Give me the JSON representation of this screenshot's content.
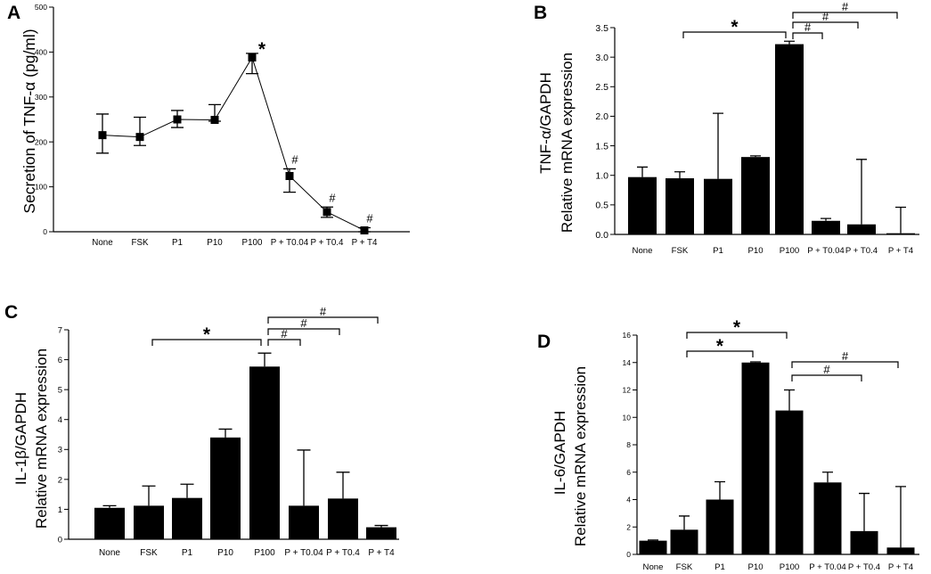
{
  "chart_data": [
    {
      "panel": "A",
      "type": "line",
      "grid": false,
      "ylabel": [
        "Secretion of TNF-α (pg/ml)"
      ],
      "ylim": [
        0,
        500
      ],
      "yticks": [
        "0",
        "100",
        "200",
        "300",
        "400",
        "500"
      ],
      "categories": [
        "None",
        "FSK",
        "P1",
        "P10",
        "P100",
        "P + T0.04",
        "P + T0.4",
        "P + T4"
      ],
      "values": [
        215,
        211,
        250,
        249,
        388,
        124,
        44,
        3
      ],
      "error_high": [
        262,
        255,
        270,
        283,
        397,
        140,
        55,
        9
      ],
      "error_low": [
        175,
        192,
        232,
        246,
        352,
        88,
        32,
        0
      ],
      "markers": [
        {
          "index": 4,
          "symbol": "*"
        },
        {
          "index": 5,
          "symbol": "#"
        },
        {
          "index": 6,
          "symbol": "#"
        },
        {
          "index": 7,
          "symbol": "#"
        }
      ]
    },
    {
      "panel": "B",
      "type": "bar",
      "grid": false,
      "ylabel": [
        "TNF-α/GAPDH",
        "Relative mRNA expression"
      ],
      "ylim": [
        0,
        3.5
      ],
      "yticks": [
        "0.0",
        "0.5",
        "1.0",
        "1.5",
        "2.0",
        "2.5",
        "3.0",
        "3.5"
      ],
      "categories": [
        "None",
        "FSK",
        "P1",
        "P10",
        "P100",
        "P + T0.04",
        "P + T0.4",
        "P + T4"
      ],
      "values": [
        0.97,
        0.95,
        0.94,
        1.31,
        3.22,
        0.23,
        0.17,
        0.02
      ],
      "error_high": [
        1.14,
        1.06,
        2.05,
        1.33,
        3.27,
        0.27,
        1.27,
        0.46
      ],
      "brackets": [
        {
          "from_index": 1,
          "to_index": 4,
          "symbol": "*"
        },
        {
          "from_index": 4,
          "to_index": 5,
          "symbol": "#"
        },
        {
          "from_index": 4,
          "to_index": 6,
          "symbol": "#"
        },
        {
          "from_index": 4,
          "to_index": 7,
          "symbol": "#"
        }
      ]
    },
    {
      "panel": "C",
      "type": "bar",
      "grid": false,
      "ylabel": [
        "IL-1β/GAPDH",
        "Relative mRNA expression"
      ],
      "ylim": [
        0,
        7
      ],
      "yticks": [
        "0",
        "1",
        "2",
        "3",
        "4",
        "5",
        "6",
        "7"
      ],
      "categories": [
        "None",
        "FSK",
        "P1",
        "P10",
        "P100",
        "P + T0.04",
        "P + T0.4",
        "P + T4"
      ],
      "values": [
        1.05,
        1.12,
        1.38,
        3.4,
        5.77,
        1.12,
        1.36,
        0.4
      ],
      "error_high": [
        1.12,
        1.78,
        1.84,
        3.68,
        6.22,
        2.98,
        2.24,
        0.46
      ],
      "brackets": [
        {
          "from_index": 1,
          "to_index": 4,
          "symbol": "*"
        },
        {
          "from_index": 4,
          "to_index": 5,
          "symbol": "#"
        },
        {
          "from_index": 4,
          "to_index": 6,
          "symbol": "#"
        },
        {
          "from_index": 4,
          "to_index": 7,
          "symbol": "#"
        }
      ]
    },
    {
      "panel": "D",
      "type": "bar",
      "grid": false,
      "ylabel": [
        "IL-6/GAPDH",
        "Relative mRNA expression"
      ],
      "ylim": [
        0,
        16
      ],
      "yticks": [
        "0",
        "2",
        "4",
        "6",
        "8",
        "10",
        "12",
        "14",
        "16"
      ],
      "categories": [
        "None",
        "FSK",
        "P1",
        "P10",
        "P100",
        "P + T0.04",
        "P + T0.4",
        "P + T4"
      ],
      "values": [
        1.0,
        1.8,
        4.0,
        14.0,
        10.5,
        5.25,
        1.7,
        0.5
      ],
      "error_high": [
        1.05,
        2.8,
        5.3,
        14.05,
        12.0,
        6.0,
        4.45,
        4.95
      ],
      "brackets": [
        {
          "from_index": 1,
          "to_index": 4,
          "symbol": "*"
        },
        {
          "from_index": 1,
          "to_index": 3,
          "symbol": "*"
        },
        {
          "from_index": 4,
          "to_index": 7,
          "symbol": "#"
        },
        {
          "from_index": 4,
          "to_index": 6,
          "symbol": "#"
        }
      ]
    }
  ]
}
